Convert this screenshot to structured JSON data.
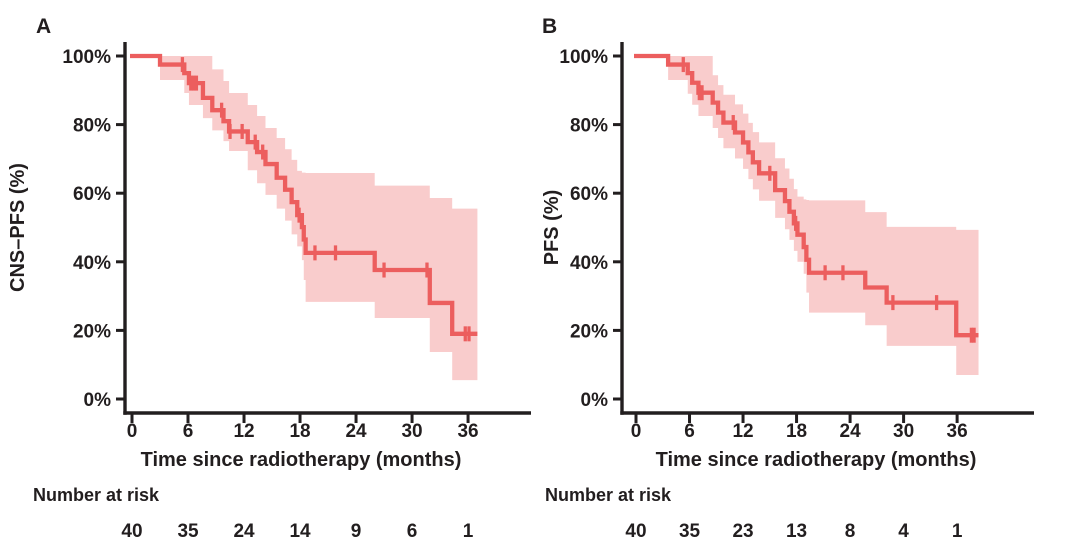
{
  "chart_data": [
    {
      "type": "line",
      "subtype": "kaplan-meier",
      "panel_label": "A",
      "xlabel": "Time since radiotherapy (months)",
      "ylabel": "CNS–PFS (%)",
      "xlim": [
        0,
        42
      ],
      "ylim": [
        0,
        100
      ],
      "xtick_values": [
        0,
        6,
        12,
        18,
        24,
        30,
        36
      ],
      "xtick_labels": [
        "0",
        "6",
        "12",
        "18",
        "24",
        "30",
        "36"
      ],
      "ytick_values": [
        100,
        80,
        60,
        40,
        20,
        0
      ],
      "ytick_labels": [
        "100%",
        "80%",
        "60%",
        "40%",
        "20%",
        "0%"
      ],
      "risk_header": "Number at risk",
      "risk_times": [
        0,
        6,
        12,
        18,
        24,
        30,
        36
      ],
      "number_at_risk": [
        "40",
        "35",
        "24",
        "14",
        "9",
        "6",
        "1"
      ],
      "km": {
        "times": [
          0,
          3.0,
          5.6,
          6.1,
          7.6,
          8.6,
          9.8,
          10.4,
          12.4,
          13.4,
          14.3,
          15.5,
          16.4,
          17.1,
          17.7,
          18.2,
          18.4,
          18.6,
          26.0,
          31.9,
          34.3
        ],
        "surv": [
          100,
          97.5,
          95.0,
          92.1,
          87.8,
          84.2,
          81.0,
          78.0,
          74.9,
          72.0,
          68.5,
          64.5,
          61.0,
          57.4,
          53.6,
          50.1,
          46.5,
          42.6,
          37.6,
          28.0,
          19.0
        ],
        "upper": [
          100,
          100,
          100,
          100,
          100,
          96.1,
          92.7,
          89.2,
          85.7,
          82.5,
          79.0,
          76.1,
          72.8,
          69.7,
          66.5,
          66.0,
          66.0,
          65.9,
          62.2,
          58.6,
          55.5
        ],
        "lower": [
          100,
          93.0,
          89.2,
          85.7,
          81.9,
          78.3,
          75.2,
          72.3,
          66.7,
          62.9,
          59.5,
          55.5,
          52.0,
          48.0,
          44.5,
          40.5,
          34.7,
          28.3,
          23.6,
          13.7,
          5.5
        ],
        "censors": [
          [
            5.4,
            97.5
          ],
          [
            6.3,
            92.1
          ],
          [
            6.6,
            92.1
          ],
          [
            6.9,
            92.1
          ],
          [
            9.6,
            84.2
          ],
          [
            10.5,
            78.0
          ],
          [
            11.8,
            78.0
          ],
          [
            13.2,
            74.9
          ],
          [
            14.0,
            72.0
          ],
          [
            17.9,
            53.6
          ],
          [
            19.6,
            42.6
          ],
          [
            21.8,
            42.6
          ],
          [
            27.0,
            37.6
          ],
          [
            31.6,
            37.6
          ],
          [
            35.7,
            19.0
          ],
          [
            36.1,
            19.0
          ]
        ],
        "end_time": 37.0
      }
    },
    {
      "type": "line",
      "subtype": "kaplan-meier",
      "panel_label": "B",
      "xlabel": "Time since radiotherapy (months)",
      "ylabel": "PFS (%)",
      "xlim": [
        0,
        42
      ],
      "ylim": [
        0,
        100
      ],
      "xtick_values": [
        0,
        6,
        12,
        18,
        24,
        30,
        36
      ],
      "xtick_labels": [
        "0",
        "6",
        "12",
        "18",
        "24",
        "30",
        "36"
      ],
      "ytick_values": [
        100,
        80,
        60,
        40,
        20,
        0
      ],
      "ytick_labels": [
        "100%",
        "80%",
        "60%",
        "40%",
        "20%",
        "0%"
      ],
      "risk_header": "Number at risk",
      "risk_times": [
        0,
        6,
        12,
        18,
        24,
        30,
        36
      ],
      "number_at_risk": [
        "40",
        "35",
        "23",
        "13",
        "8",
        "4",
        "1"
      ],
      "km": {
        "times": [
          0,
          3.6,
          5.8,
          6.3,
          7.0,
          8.6,
          9.2,
          9.8,
          11.1,
          12.0,
          12.6,
          13.1,
          13.8,
          15.6,
          16.7,
          17.2,
          17.7,
          18.1,
          18.8,
          19.1,
          19.4,
          25.7,
          28.1,
          35.9
        ],
        "surv": [
          100,
          97.5,
          95.0,
          92.2,
          89.3,
          86.4,
          83.5,
          80.6,
          77.7,
          74.8,
          71.9,
          69.0,
          65.8,
          60.9,
          57.7,
          54.6,
          51.2,
          47.9,
          44.3,
          40.6,
          36.8,
          32.5,
          28.1,
          18.6
        ],
        "upper": [
          100,
          100,
          100,
          100,
          100,
          94.4,
          91.5,
          88.7,
          85.9,
          83.2,
          80.5,
          77.8,
          74.8,
          70.2,
          67.2,
          64.2,
          61.2,
          59.0,
          58.2,
          58.0,
          57.9,
          54.5,
          50.2,
          49.3
        ],
        "lower": [
          100,
          93.0,
          89.0,
          85.8,
          82.5,
          79.0,
          76.1,
          73.1,
          70.1,
          67.1,
          64.1,
          61.1,
          57.8,
          52.8,
          49.5,
          46.4,
          43.2,
          40.0,
          36.5,
          31.0,
          25.2,
          21.5,
          15.5,
          7.0
        ],
        "censors": [
          [
            5.3,
            97.5
          ],
          [
            7.1,
            89.3
          ],
          [
            7.4,
            89.3
          ],
          [
            10.9,
            80.6
          ],
          [
            15.0,
            65.8
          ],
          [
            17.9,
            51.2
          ],
          [
            21.2,
            36.8
          ],
          [
            23.2,
            36.8
          ],
          [
            28.8,
            28.1
          ],
          [
            33.7,
            28.1
          ],
          [
            37.6,
            18.6
          ],
          [
            37.9,
            18.6
          ]
        ],
        "end_time": 38.4
      }
    }
  ],
  "colors": {
    "curve": "#ec5e5e",
    "band": "#f9cccc",
    "axis": "#221e1f",
    "text": "#221e1f",
    "background": "#ffffff"
  }
}
